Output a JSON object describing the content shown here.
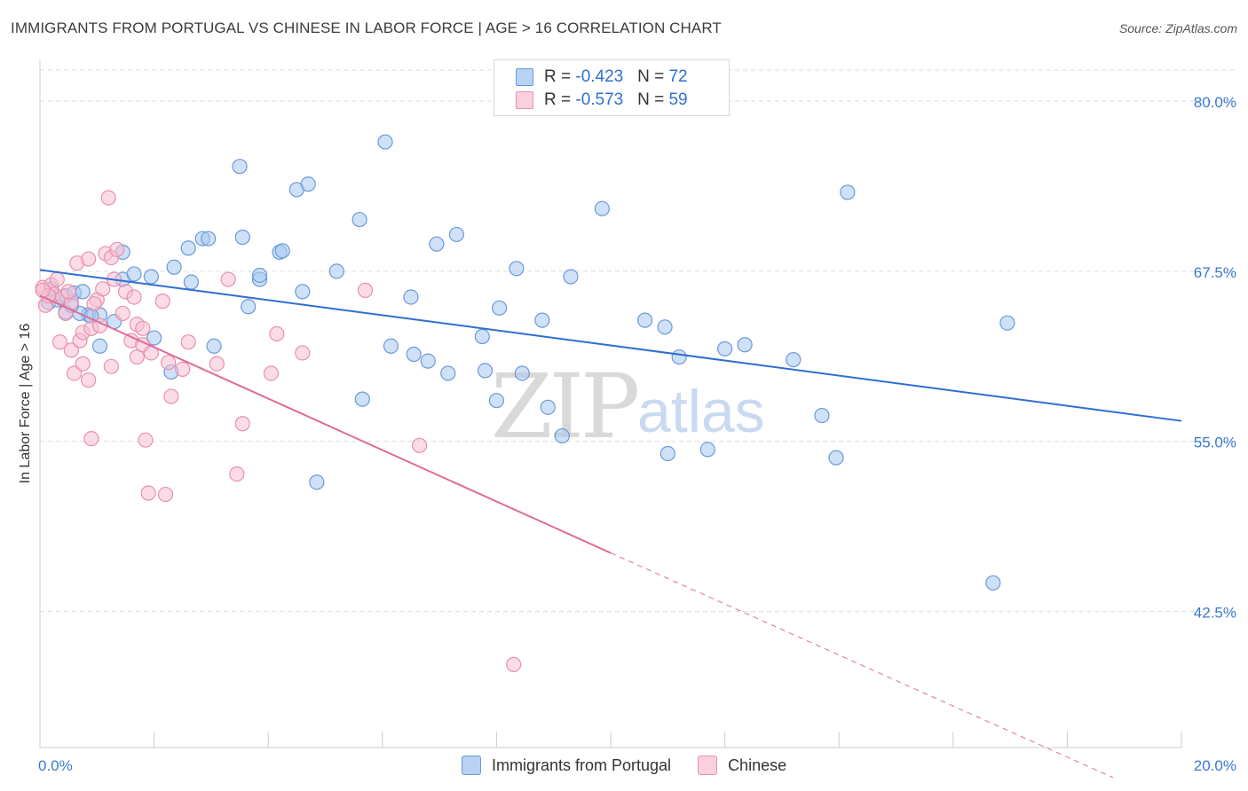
{
  "title": "IMMIGRANTS FROM PORTUGAL VS CHINESE IN LABOR FORCE | AGE > 16 CORRELATION CHART",
  "source": "Source: ZipAtlas.com",
  "watermark": {
    "zip": "ZIP",
    "atlas": "atlas"
  },
  "legend_top": [
    {
      "r_label": "R = ",
      "r_value": "-0.423",
      "n_label": "N = ",
      "n_value": "72"
    },
    {
      "r_label": "R = ",
      "r_value": "-0.573",
      "n_label": "N = ",
      "n_value": "59"
    }
  ],
  "colors": {
    "blue_fill": "#a8c8f0",
    "blue_stroke": "#6a9ad8",
    "blue_line": "#2f6fd0",
    "pink_fill": "#f8c0d2",
    "pink_stroke": "#e890ae",
    "pink_line": "#e06c98",
    "tick_label": "#3a78d0",
    "grid": "#dddddd"
  },
  "chart_data": {
    "type": "scatter",
    "title": "IMMIGRANTS FROM PORTUGAL VS CHINESE IN LABOR FORCE | AGE > 16 CORRELATION CHART",
    "xlabel": "",
    "ylabel": "In Labor Force | Age > 16",
    "xlim": [
      0,
      20
    ],
    "ylim": [
      32.5,
      83
    ],
    "x_tick_labels": [
      "0.0%",
      "20.0%"
    ],
    "y_ticks": [
      42.5,
      55.0,
      67.5,
      80.0
    ],
    "y_tick_labels": [
      "42.5%",
      "55.0%",
      "67.5%",
      "80.0%"
    ],
    "grid": true,
    "legend_position": "bottom",
    "series": [
      {
        "name": "Immigrants from Portugal",
        "color": "#a8c8f0",
        "points": [
          [
            0.15,
            65.2
          ],
          [
            0.3,
            65.4
          ],
          [
            0.45,
            65.7
          ],
          [
            0.45,
            64.5
          ],
          [
            0.6,
            65.9
          ],
          [
            0.75,
            66.0
          ],
          [
            0.85,
            64.3
          ],
          [
            0.7,
            64.4
          ],
          [
            1.05,
            64.3
          ],
          [
            1.05,
            62.0
          ],
          [
            1.45,
            66.9
          ],
          [
            1.45,
            68.9
          ],
          [
            1.65,
            67.3
          ],
          [
            1.95,
            67.1
          ],
          [
            2.0,
            62.6
          ],
          [
            2.35,
            67.8
          ],
          [
            2.3,
            60.1
          ],
          [
            2.6,
            69.2
          ],
          [
            2.65,
            66.7
          ],
          [
            2.85,
            69.9
          ],
          [
            2.95,
            69.9
          ],
          [
            3.05,
            62.0
          ],
          [
            3.5,
            75.2
          ],
          [
            3.55,
            70.0
          ],
          [
            3.65,
            64.9
          ],
          [
            3.85,
            66.9
          ],
          [
            3.85,
            67.2
          ],
          [
            4.2,
            68.9
          ],
          [
            4.25,
            69.0
          ],
          [
            4.5,
            73.5
          ],
          [
            4.6,
            66.0
          ],
          [
            4.7,
            73.9
          ],
          [
            4.85,
            52.0
          ],
          [
            5.2,
            67.5
          ],
          [
            5.6,
            71.3
          ],
          [
            5.65,
            58.1
          ],
          [
            6.05,
            77.0
          ],
          [
            6.15,
            62.0
          ],
          [
            6.5,
            65.6
          ],
          [
            6.55,
            61.4
          ],
          [
            6.8,
            60.9
          ],
          [
            6.95,
            69.5
          ],
          [
            7.15,
            60.0
          ],
          [
            7.3,
            70.2
          ],
          [
            7.75,
            62.7
          ],
          [
            7.8,
            60.2
          ],
          [
            8.05,
            64.8
          ],
          [
            8.0,
            58.0
          ],
          [
            8.35,
            67.7
          ],
          [
            8.45,
            60.0
          ],
          [
            8.8,
            63.9
          ],
          [
            8.9,
            57.5
          ],
          [
            9.15,
            55.4
          ],
          [
            9.3,
            67.1
          ],
          [
            9.85,
            72.1
          ],
          [
            10.6,
            63.9
          ],
          [
            10.95,
            63.4
          ],
          [
            11.0,
            54.1
          ],
          [
            11.2,
            61.2
          ],
          [
            11.7,
            54.4
          ],
          [
            12.0,
            61.8
          ],
          [
            12.35,
            62.1
          ],
          [
            13.2,
            61.0
          ],
          [
            13.7,
            56.9
          ],
          [
            13.95,
            53.8
          ],
          [
            14.15,
            73.3
          ],
          [
            16.7,
            44.6
          ],
          [
            16.95,
            63.7
          ],
          [
            0.55,
            65.0
          ],
          [
            0.9,
            64.2
          ],
          [
            1.3,
            63.8
          ],
          [
            0.2,
            66.2
          ]
        ]
      },
      {
        "name": "Chinese",
        "color": "#f8c0d2",
        "points": [
          [
            0.05,
            66.3
          ],
          [
            0.1,
            65.0
          ],
          [
            0.2,
            66.5
          ],
          [
            0.25,
            65.8
          ],
          [
            0.3,
            66.9
          ],
          [
            0.35,
            62.3
          ],
          [
            0.4,
            65.6
          ],
          [
            0.45,
            64.4
          ],
          [
            0.55,
            65.2
          ],
          [
            0.55,
            61.7
          ],
          [
            0.6,
            60.0
          ],
          [
            0.65,
            68.1
          ],
          [
            0.7,
            62.4
          ],
          [
            0.75,
            63.0
          ],
          [
            0.75,
            60.7
          ],
          [
            0.85,
            68.4
          ],
          [
            0.85,
            59.5
          ],
          [
            0.9,
            63.3
          ],
          [
            0.9,
            55.2
          ],
          [
            1.0,
            65.4
          ],
          [
            1.05,
            63.5
          ],
          [
            1.1,
            66.2
          ],
          [
            1.15,
            68.8
          ],
          [
            1.2,
            72.9
          ],
          [
            1.25,
            68.5
          ],
          [
            1.25,
            60.5
          ],
          [
            1.3,
            66.9
          ],
          [
            1.35,
            69.1
          ],
          [
            1.45,
            64.4
          ],
          [
            1.5,
            66.0
          ],
          [
            1.6,
            62.4
          ],
          [
            1.65,
            65.6
          ],
          [
            1.7,
            63.6
          ],
          [
            1.7,
            61.2
          ],
          [
            1.8,
            62.1
          ],
          [
            1.8,
            63.3
          ],
          [
            1.85,
            55.1
          ],
          [
            1.9,
            51.2
          ],
          [
            1.95,
            61.5
          ],
          [
            2.15,
            65.3
          ],
          [
            2.2,
            51.1
          ],
          [
            2.25,
            60.8
          ],
          [
            2.3,
            58.3
          ],
          [
            2.5,
            60.3
          ],
          [
            2.6,
            62.3
          ],
          [
            3.1,
            60.7
          ],
          [
            3.3,
            66.9
          ],
          [
            3.45,
            52.6
          ],
          [
            3.55,
            56.3
          ],
          [
            4.05,
            60.0
          ],
          [
            4.15,
            62.9
          ],
          [
            4.6,
            61.5
          ],
          [
            5.7,
            66.1
          ],
          [
            6.65,
            54.7
          ],
          [
            8.3,
            38.6
          ],
          [
            0.15,
            65.7
          ],
          [
            0.5,
            66.0
          ],
          [
            0.95,
            65.1
          ],
          [
            0.05,
            66.1
          ]
        ]
      }
    ],
    "trend_lines": [
      {
        "series": "Immigrants from Portugal",
        "x0": 0,
        "y0": 67.6,
        "x1": 20,
        "y1": 56.5
      },
      {
        "series": "Chinese",
        "x0": 0,
        "y0": 65.7,
        "x1": 10,
        "y1": 46.8,
        "dashed_to_x": 18.8,
        "dashed_to_y": 30.3
      }
    ]
  }
}
